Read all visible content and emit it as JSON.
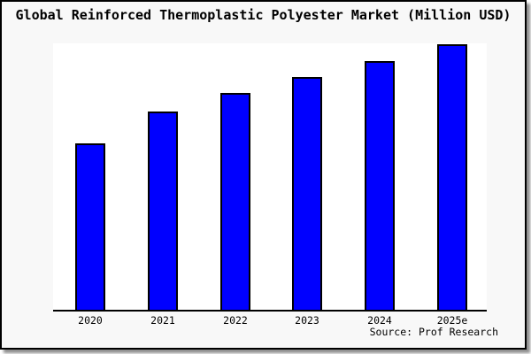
{
  "window": {
    "background": "#f8f8f8",
    "border_color": "#000000",
    "shadow_color": "#8f8f8f"
  },
  "chart_data": {
    "type": "bar",
    "title": "Global Reinforced Thermoplastic Polyester Market (Million USD)",
    "unit": "Million USD",
    "categories": [
      "2020",
      "2021",
      "2022",
      "2023",
      "2024",
      "2025e"
    ],
    "values_pct_of_plot_max": [
      62.6,
      74.5,
      81.5,
      87.4,
      93.4,
      99.7
    ],
    "xlabel": "",
    "ylabel": "",
    "y_axis_labeled": false,
    "gridlines": false,
    "legend": "none",
    "bar_color": "#0000ff",
    "bar_outline_color": "#000000",
    "plot_background": "#ffffff",
    "axis_line_color": "#000000"
  },
  "source": {
    "label": "Source: Prof Research"
  }
}
